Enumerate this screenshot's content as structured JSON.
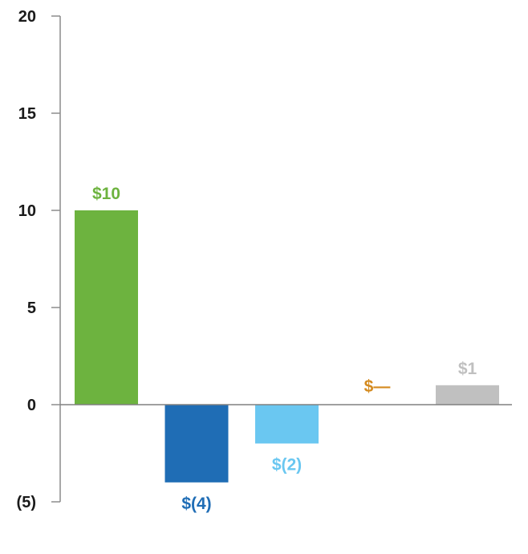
{
  "chart_data": {
    "type": "bar",
    "title": "",
    "xlabel": "",
    "ylabel": "",
    "ylim": [
      -5,
      20
    ],
    "yticks": [
      20,
      15,
      10,
      5,
      0,
      -5
    ],
    "ytick_labels": [
      "20",
      "15",
      "10",
      "5",
      "0",
      "(5)"
    ],
    "grid": false,
    "legend": "none",
    "bars": [
      {
        "value": 10,
        "label": "$10",
        "color": "#6db33f"
      },
      {
        "value": -4,
        "label": "$(4)",
        "color": "#1f6db5"
      },
      {
        "value": -2,
        "label": "$(2)",
        "color": "#6ac7f1"
      },
      {
        "value": 0,
        "label": "$—",
        "color": "#d48a1e"
      },
      {
        "value": 1,
        "label": "$1",
        "color": "#c0c0c0"
      }
    ]
  }
}
